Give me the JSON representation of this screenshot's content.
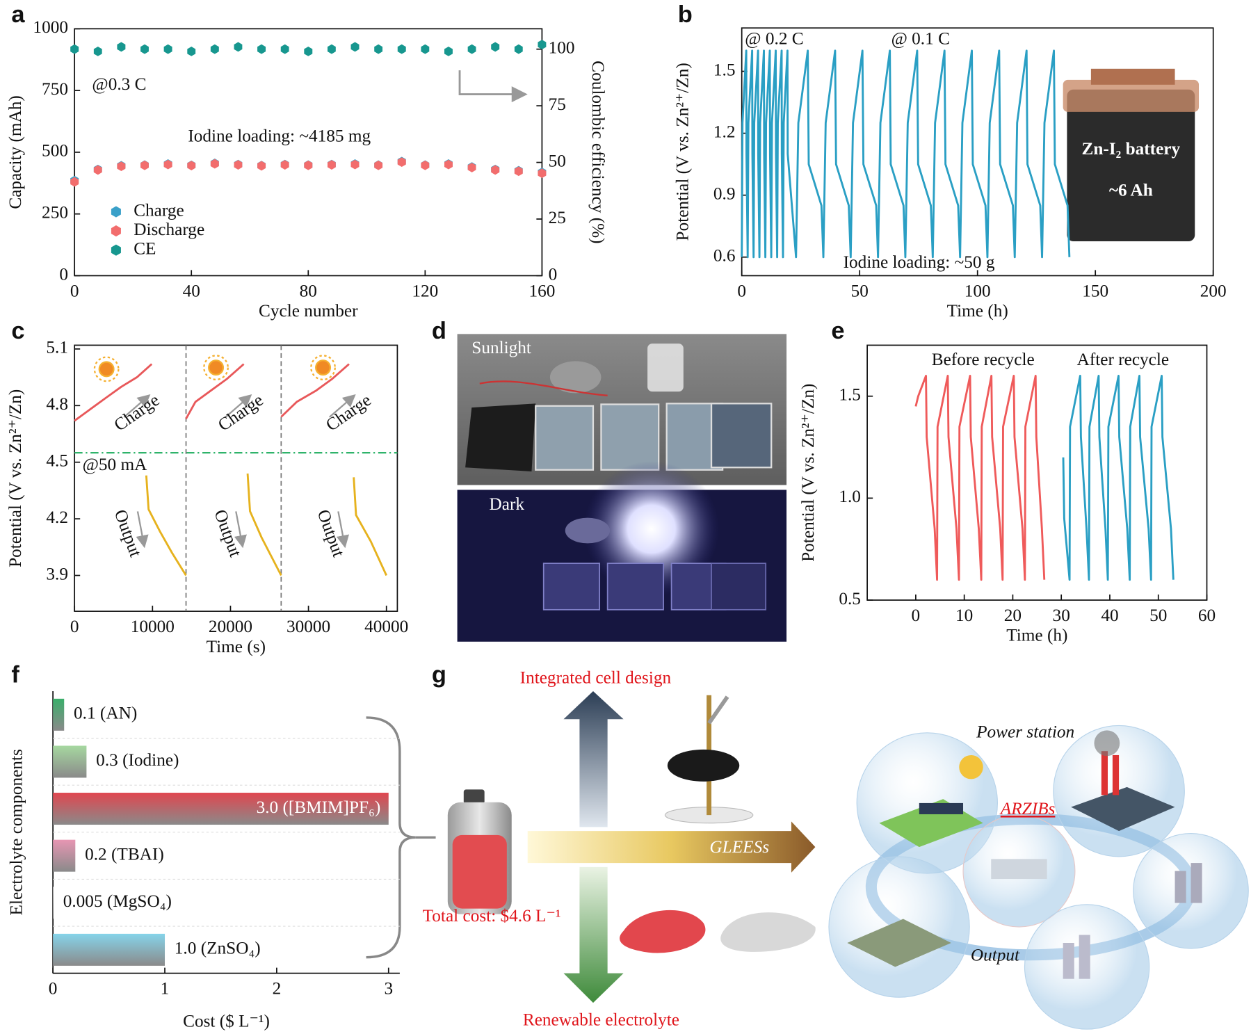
{
  "chart_data": [
    {
      "panel": "a",
      "type": "scatter",
      "legend": "lower left",
      "box": true,
      "xlabel": "Cycle number",
      "ylabel": "Capacity (mAh)",
      "y2label": "Coulombic efficiency (%)",
      "annotations": [
        "@0.3 C",
        "Iodine loading: ~4185 mg"
      ],
      "x": [
        0,
        8,
        16,
        24,
        32,
        40,
        48,
        56,
        64,
        72,
        80,
        88,
        96,
        104,
        112,
        120,
        128,
        136,
        144,
        152,
        160
      ],
      "xlim": [
        0,
        160
      ],
      "xticks": [
        0,
        40,
        80,
        120,
        160
      ],
      "ylim": [
        0,
        1000
      ],
      "yticks": [
        0,
        250,
        500,
        750,
        1000
      ],
      "y2lim": [
        0,
        109
      ],
      "y2ticks": [
        0,
        25,
        50,
        75,
        100
      ],
      "series": [
        {
          "name": "Charge",
          "color": "#3aa0c9",
          "values": [
            385,
            430,
            445,
            448,
            452,
            447,
            455,
            450,
            446,
            450,
            448,
            450,
            452,
            448,
            462,
            448,
            452,
            440,
            430,
            425,
            418
          ]
        },
        {
          "name": "Discharge",
          "color": "#f26d6d",
          "values": [
            380,
            428,
            443,
            447,
            450,
            446,
            453,
            449,
            445,
            449,
            447,
            449,
            450,
            447,
            460,
            447,
            450,
            438,
            428,
            423,
            415
          ]
        },
        {
          "name": "CE",
          "color": "#17978f",
          "axis": "y2",
          "values": [
            100,
            99,
            101,
            100,
            100,
            99,
            100,
            101,
            100,
            100,
            99,
            100,
            101,
            100,
            100,
            100,
            99,
            100,
            101,
            100,
            102
          ]
        }
      ]
    },
    {
      "panel": "b",
      "type": "line",
      "box": true,
      "xlabel": "Time (h)",
      "ylabel": "Potential (V vs. Zn²⁺/Zn)",
      "annotations": [
        "@ 0.2 C",
        "@ 0.1 C",
        "Iodine loading: ~50 g"
      ],
      "inset": [
        "Zn-I₂ battery",
        "~6 Ah"
      ],
      "xlim": [
        0,
        200
      ],
      "xticks": [
        0,
        50,
        100,
        150,
        200
      ],
      "ylim": [
        0.51,
        1.71
      ],
      "yticks": [
        0.6,
        0.9,
        1.2,
        1.5
      ],
      "series": [
        {
          "color": "#2a9fc4",
          "x": [
            0,
            0.3,
            1.9,
            2.0,
            2.5,
            2.8,
            4.4,
            4.5,
            5,
            5.3,
            6.9,
            7.0,
            7.5,
            7.8,
            9.4,
            9.5,
            10,
            10.3,
            11.9,
            12.0,
            12.5,
            12.8,
            14.4,
            14.5,
            15,
            15.3,
            16.9,
            17.0,
            17.5,
            17.8,
            19.4,
            19.5,
            23,
            24,
            28,
            28.4,
            33.8,
            34.6,
            35.6,
            39.6,
            40,
            45.4,
            46.2,
            47.2,
            51.2,
            51.6,
            57,
            57.8,
            58.8,
            62.8,
            63.2,
            68.6,
            69.4,
            70.4,
            74.4,
            74.8,
            80.2,
            81,
            82,
            86,
            86.4,
            91.8,
            92.6,
            93.6,
            97.6,
            98,
            103.4,
            104.2,
            105.2,
            109.2,
            109.6,
            115,
            115.8,
            116.8,
            120.8,
            121.2,
            126.6,
            127.4,
            128.4,
            132.4,
            132.8,
            138.2,
            139
          ],
          "values": [
            0.6,
            1.25,
            1.6,
            1.1,
            0.6,
            1.25,
            1.6,
            1.1,
            0.6,
            1.25,
            1.6,
            1.1,
            0.6,
            1.25,
            1.6,
            1.1,
            0.6,
            1.25,
            1.6,
            1.1,
            0.6,
            1.25,
            1.6,
            1.1,
            0.6,
            1.25,
            1.6,
            1.1,
            0.6,
            1.25,
            1.6,
            1.1,
            0.6,
            1.25,
            1.6,
            1.05,
            0.85,
            0.6,
            1.25,
            1.6,
            1.05,
            0.85,
            0.6,
            1.25,
            1.6,
            1.05,
            0.85,
            0.6,
            1.25,
            1.6,
            1.05,
            0.85,
            0.6,
            1.25,
            1.6,
            1.05,
            0.85,
            0.6,
            1.25,
            1.6,
            1.05,
            0.85,
            0.6,
            1.25,
            1.6,
            1.05,
            0.85,
            0.6,
            1.25,
            1.6,
            1.05,
            0.85,
            0.6,
            1.25,
            1.6,
            1.05,
            0.85,
            0.6,
            1.25,
            1.6,
            1.05,
            0.85,
            0.6
          ]
        }
      ]
    },
    {
      "panel": "c",
      "type": "line",
      "box": true,
      "xlabel": "Time (s)",
      "ylabel": "Potential (V vs. Zn²⁺/Zn)",
      "annotations": [
        "@50 mA",
        "Charge",
        "Charge",
        "Charge",
        "Output",
        "Output",
        "Output"
      ],
      "hline": 4.55,
      "hline_color": "#2fb36a",
      "vlines": [
        14300,
        26500
      ],
      "xlim": [
        0,
        41400
      ],
      "xticks": [
        0,
        10000,
        20000,
        30000,
        40000
      ],
      "ylim": [
        3.71,
        5.12
      ],
      "yticks": [
        3.9,
        4.2,
        4.5,
        4.8,
        5.1
      ],
      "series": [
        {
          "color": "#e8585a",
          "x": [
            0,
            2000,
            4000,
            6000,
            8000,
            9900
          ],
          "values": [
            4.72,
            4.78,
            4.84,
            4.9,
            4.95,
            5.02
          ]
        },
        {
          "color": "#e8585a",
          "x": [
            14300,
            15500,
            17500,
            19500,
            21700
          ],
          "values": [
            4.73,
            4.82,
            4.88,
            4.94,
            5.02
          ]
        },
        {
          "color": "#e8585a",
          "x": [
            26500,
            28500,
            31000,
            33000,
            35200
          ],
          "values": [
            4.74,
            4.82,
            4.88,
            4.94,
            5.02
          ]
        },
        {
          "color": "#e6b21e",
          "x": [
            9200,
            9500,
            11000,
            12500,
            14300
          ],
          "values": [
            4.43,
            4.25,
            4.13,
            4.02,
            3.9
          ]
        },
        {
          "color": "#e6b21e",
          "x": [
            22200,
            22500,
            24000,
            26500
          ],
          "values": [
            4.44,
            4.24,
            4.1,
            3.9
          ]
        },
        {
          "color": "#e6b21e",
          "x": [
            35800,
            36100,
            38000,
            40000
          ],
          "values": [
            4.42,
            4.22,
            4.08,
            3.9
          ]
        }
      ]
    },
    {
      "panel": "d",
      "type": "photo",
      "labels": [
        "Sunlight",
        "Dark"
      ]
    },
    {
      "panel": "e",
      "type": "line",
      "box": true,
      "xlabel": "Time (h)",
      "ylabel": "Potential (V vs. Zn²⁺/Zn)",
      "xlim": [
        -10,
        60
      ],
      "xticks": [
        0,
        10,
        20,
        30,
        40,
        50,
        60
      ],
      "ylim": [
        0.5,
        1.75
      ],
      "yticks": [
        0.5,
        {
          "value": 1,
          "label": "1.0"
        },
        1.5
      ],
      "series": [
        {
          "name": "Before recycle",
          "color": "#ef5a5a",
          "x": [
            0,
            0.5,
            2.1,
            2.25,
            3.9,
            4.4,
            4.5,
            6.6,
            6.75,
            8.4,
            8.9,
            9.0,
            11.2,
            11.35,
            13.0,
            13.5,
            13.6,
            15.6,
            15.75,
            17.4,
            17.9,
            18.0,
            20.2,
            20.35,
            22.0,
            22.5,
            22.6,
            24.7,
            24.85,
            26.0,
            26.5
          ],
          "values": [
            1.45,
            1.5,
            1.6,
            1.3,
            0.85,
            0.6,
            1.35,
            1.6,
            1.3,
            0.85,
            0.6,
            1.35,
            1.6,
            1.3,
            0.85,
            0.6,
            1.35,
            1.6,
            1.3,
            0.85,
            0.6,
            1.35,
            1.6,
            1.3,
            0.85,
            0.6,
            1.35,
            1.6,
            1.3,
            0.85,
            0.6
          ]
        },
        {
          "name": "After recycle",
          "color": "#2a9fc4",
          "x": [
            30.4,
            30.6,
            31.7,
            31.8,
            33.9,
            34.05,
            35.2,
            35.7,
            35.8,
            37.7,
            37.85,
            39.1,
            39.6,
            39.7,
            41.8,
            41.95,
            43.6,
            44.1,
            44.2,
            46.1,
            46.25,
            48.0,
            48.5,
            48.6,
            50.7,
            50.85,
            52.6,
            53.1
          ],
          "values": [
            1.2,
            0.9,
            0.6,
            1.35,
            1.6,
            1.3,
            0.85,
            0.6,
            1.35,
            1.6,
            1.3,
            0.85,
            0.6,
            1.35,
            1.6,
            1.3,
            0.85,
            0.6,
            1.35,
            1.6,
            1.3,
            0.85,
            0.6,
            1.35,
            1.6,
            1.3,
            0.85,
            0.6
          ]
        }
      ]
    },
    {
      "panel": "f",
      "type": "bar",
      "orientation": "horizontal",
      "box": false,
      "xlabel": "Cost ($ L⁻¹)",
      "ylabel": "Electrolyte components",
      "values": [
        0.1,
        0.3,
        3.0,
        0.2,
        0.005,
        1.0
      ],
      "value_labels": [
        "0.1 (AN)",
        "0.3 (Iodine)",
        "3.0 ([BMIM]PF₆)",
        "0.2 (TBAI)",
        "0.005 (MgSO₄)",
        "1.0 (ZnSO₄)"
      ],
      "colors": [
        "#3aae6a",
        "#a6d8a0",
        "#e0464f",
        "#e796b3",
        "#c8c8c8",
        "#86d4ea"
      ],
      "xlim": [
        0,
        3.1
      ],
      "xticks": [
        0,
        1,
        2,
        3
      ]
    },
    {
      "panel": "g",
      "type": "diagram",
      "labels": [
        "Integrated cell design",
        "Renewable electrolyte",
        "GLEESs",
        "Total cost: $4.6 L⁻¹",
        "Power station",
        "ARZIBs",
        "Output"
      ]
    }
  ]
}
